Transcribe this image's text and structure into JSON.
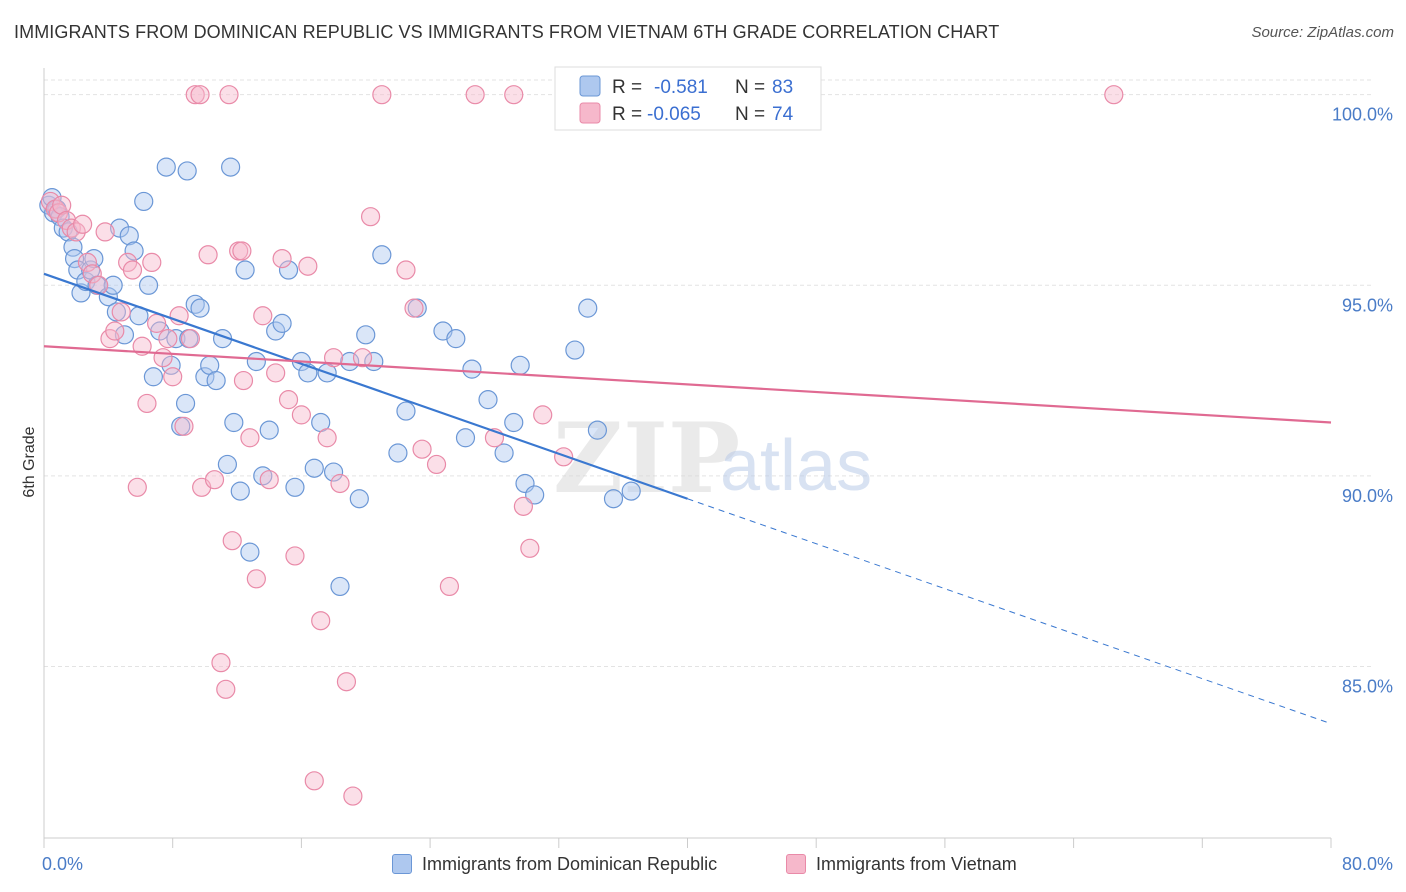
{
  "title": "IMMIGRANTS FROM DOMINICAN REPUBLIC VS IMMIGRANTS FROM VIETNAM 6TH GRADE CORRELATION CHART",
  "source": "Source: ZipAtlas.com",
  "watermark": {
    "zip": "ZIP",
    "atlas": "atlas"
  },
  "colors": {
    "blue_fill": "#aec8ef",
    "blue_stroke": "#6b97d6",
    "blue_line": "#3a78d0",
    "pink_fill": "#f6b8cb",
    "pink_stroke": "#e98aa8",
    "pink_line": "#e06a92",
    "grid": "#e3e3e3",
    "tick_label": "#4a7cc7"
  },
  "legend": {
    "rows": [
      {
        "r_label": "R = ",
        "r_value": "-0.581",
        "n_label": "N = ",
        "n_value": "83"
      },
      {
        "r_label": "R = ",
        "r_value": "-0.065",
        "n_label": "N = ",
        "n_value": "74"
      }
    ]
  },
  "chart_data": {
    "type": "scatter",
    "title": "IMMIGRANTS FROM DOMINICAN REPUBLIC VS IMMIGRANTS FROM VIETNAM 6TH GRADE CORRELATION CHART",
    "xlabel": "",
    "ylabel": "6th Grade",
    "xlim": [
      0,
      80
    ],
    "ylim": [
      80.5,
      100.7
    ],
    "x_tick_labels": [
      "0.0%",
      "80.0%"
    ],
    "y_ticks": [
      85,
      90,
      95,
      100
    ],
    "y_tick_labels": [
      "85.0%",
      "90.0%",
      "95.0%",
      "100.0%"
    ],
    "grid": true,
    "legend_position": "top-center",
    "series": [
      {
        "name": "Immigrants from Dominican Republic",
        "color": "#aec8ef",
        "r": -0.581,
        "n": 83,
        "trend": {
          "x": [
            0,
            40
          ],
          "y": [
            95.3,
            89.4
          ],
          "dashed_to": [
            80,
            83.5
          ]
        },
        "points": [
          [
            0.3,
            97.1
          ],
          [
            0.5,
            97.3
          ],
          [
            0.6,
            96.9
          ],
          [
            0.8,
            97.0
          ],
          [
            1.0,
            96.8
          ],
          [
            1.2,
            96.5
          ],
          [
            1.5,
            96.4
          ],
          [
            1.8,
            96.0
          ],
          [
            1.9,
            95.7
          ],
          [
            2.1,
            95.4
          ],
          [
            2.3,
            94.8
          ],
          [
            2.6,
            95.1
          ],
          [
            2.9,
            95.4
          ],
          [
            3.1,
            95.7
          ],
          [
            3.3,
            95.0
          ],
          [
            4.0,
            94.7
          ],
          [
            4.3,
            95.0
          ],
          [
            4.5,
            94.3
          ],
          [
            4.7,
            96.5
          ],
          [
            5.0,
            93.7
          ],
          [
            5.3,
            96.3
          ],
          [
            5.6,
            95.9
          ],
          [
            5.9,
            94.2
          ],
          [
            6.2,
            97.2
          ],
          [
            6.5,
            95.0
          ],
          [
            6.8,
            92.6
          ],
          [
            7.2,
            93.8
          ],
          [
            7.6,
            98.1
          ],
          [
            7.9,
            92.9
          ],
          [
            8.2,
            93.6
          ],
          [
            8.5,
            91.3
          ],
          [
            8.8,
            91.9
          ],
          [
            9.0,
            93.6
          ],
          [
            9.4,
            94.5
          ],
          [
            9.7,
            94.4
          ],
          [
            10.0,
            92.6
          ],
          [
            10.3,
            92.9
          ],
          [
            10.7,
            92.5
          ],
          [
            11.1,
            93.6
          ],
          [
            11.4,
            90.3
          ],
          [
            11.8,
            91.4
          ],
          [
            12.2,
            89.6
          ],
          [
            12.5,
            95.4
          ],
          [
            12.8,
            88.0
          ],
          [
            13.2,
            93.0
          ],
          [
            13.6,
            90.0
          ],
          [
            14.0,
            91.2
          ],
          [
            14.4,
            93.8
          ],
          [
            14.8,
            94.0
          ],
          [
            15.2,
            95.4
          ],
          [
            15.6,
            89.7
          ],
          [
            16.0,
            93.0
          ],
          [
            16.4,
            92.7
          ],
          [
            16.8,
            90.2
          ],
          [
            17.2,
            91.4
          ],
          [
            17.6,
            92.7
          ],
          [
            18.0,
            90.1
          ],
          [
            18.4,
            87.1
          ],
          [
            19.0,
            93.0
          ],
          [
            19.6,
            89.4
          ],
          [
            20.0,
            93.7
          ],
          [
            20.5,
            93.0
          ],
          [
            21.0,
            95.8
          ],
          [
            22.0,
            90.6
          ],
          [
            22.5,
            91.7
          ],
          [
            23.2,
            94.4
          ],
          [
            24.8,
            93.8
          ],
          [
            25.6,
            93.6
          ],
          [
            26.2,
            91.0
          ],
          [
            26.6,
            92.8
          ],
          [
            27.6,
            92.0
          ],
          [
            28.6,
            90.6
          ],
          [
            29.2,
            91.4
          ],
          [
            29.6,
            92.9
          ],
          [
            29.9,
            89.8
          ],
          [
            30.5,
            89.5
          ],
          [
            33.0,
            93.3
          ],
          [
            33.8,
            94.4
          ],
          [
            34.4,
            91.2
          ],
          [
            35.4,
            89.4
          ],
          [
            36.5,
            89.6
          ],
          [
            8.9,
            98.0
          ],
          [
            11.6,
            98.1
          ]
        ]
      },
      {
        "name": "Immigrants from Vietnam",
        "color": "#f6b8cb",
        "r": -0.065,
        "n": 74,
        "trend": {
          "x": [
            0,
            80
          ],
          "y": [
            93.4,
            91.4
          ]
        },
        "points": [
          [
            0.4,
            97.2
          ],
          [
            0.7,
            97.0
          ],
          [
            0.9,
            96.9
          ],
          [
            1.1,
            97.1
          ],
          [
            1.4,
            96.7
          ],
          [
            1.7,
            96.5
          ],
          [
            2.0,
            96.4
          ],
          [
            2.4,
            96.6
          ],
          [
            2.7,
            95.6
          ],
          [
            3.0,
            95.3
          ],
          [
            3.4,
            95.0
          ],
          [
            3.8,
            96.4
          ],
          [
            4.1,
            93.6
          ],
          [
            4.4,
            93.8
          ],
          [
            4.8,
            94.3
          ],
          [
            5.2,
            95.6
          ],
          [
            5.5,
            95.4
          ],
          [
            5.8,
            89.7
          ],
          [
            6.1,
            93.4
          ],
          [
            6.4,
            91.9
          ],
          [
            6.7,
            95.6
          ],
          [
            7.0,
            94.0
          ],
          [
            7.4,
            93.1
          ],
          [
            7.7,
            93.6
          ],
          [
            8.0,
            92.6
          ],
          [
            8.4,
            94.2
          ],
          [
            8.7,
            91.3
          ],
          [
            9.1,
            93.6
          ],
          [
            9.4,
            100.0
          ],
          [
            9.8,
            89.7
          ],
          [
            10.2,
            95.8
          ],
          [
            10.6,
            89.9
          ],
          [
            11.0,
            85.1
          ],
          [
            11.3,
            84.4
          ],
          [
            11.7,
            88.3
          ],
          [
            12.1,
            95.9
          ],
          [
            12.4,
            92.5
          ],
          [
            12.8,
            91.0
          ],
          [
            13.2,
            87.3
          ],
          [
            13.6,
            94.2
          ],
          [
            14.0,
            89.9
          ],
          [
            14.4,
            92.7
          ],
          [
            14.8,
            95.7
          ],
          [
            15.2,
            92.0
          ],
          [
            15.6,
            87.9
          ],
          [
            16.0,
            91.6
          ],
          [
            16.4,
            95.5
          ],
          [
            16.8,
            82.0
          ],
          [
            17.2,
            86.2
          ],
          [
            17.6,
            91.0
          ],
          [
            18.0,
            93.1
          ],
          [
            18.4,
            89.8
          ],
          [
            18.8,
            84.6
          ],
          [
            19.2,
            81.6
          ],
          [
            19.8,
            93.1
          ],
          [
            20.3,
            96.8
          ],
          [
            21.0,
            100.0
          ],
          [
            22.5,
            95.4
          ],
          [
            23.0,
            94.4
          ],
          [
            23.5,
            90.7
          ],
          [
            24.4,
            90.3
          ],
          [
            25.2,
            87.1
          ],
          [
            26.8,
            100.0
          ],
          [
            28.0,
            91.0
          ],
          [
            29.2,
            100.0
          ],
          [
            29.8,
            89.2
          ],
          [
            30.2,
            88.1
          ],
          [
            31.0,
            91.6
          ],
          [
            32.3,
            90.5
          ],
          [
            11.5,
            100.0
          ],
          [
            42.0,
            100.0
          ],
          [
            66.5,
            100.0
          ],
          [
            9.7,
            100.0
          ],
          [
            12.3,
            95.9
          ]
        ]
      }
    ]
  }
}
